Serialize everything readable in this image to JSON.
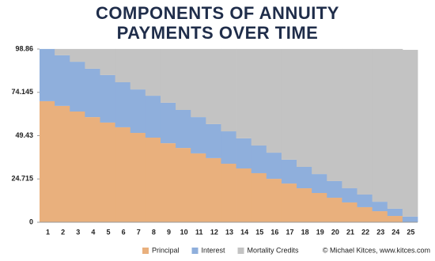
{
  "chart_data": {
    "type": "area",
    "stacked": true,
    "step": true,
    "title": "COMPONENTS OF ANNUITY PAYMENTS OVER TIME",
    "source": "© Michael Kitces, www.kitces.com",
    "categories": [
      "1",
      "2",
      "3",
      "4",
      "5",
      "6",
      "7",
      "8",
      "9",
      "10",
      "11",
      "12",
      "13",
      "14",
      "15",
      "16",
      "17",
      "18",
      "19",
      "20",
      "21",
      "22",
      "23",
      "24",
      "25"
    ],
    "series": [
      {
        "name": "Principal",
        "color": "#e9b07d",
        "values": [
          69.1,
          66.4,
          63.2,
          60.0,
          56.9,
          54.2,
          51.0,
          48.3,
          45.1,
          42.4,
          39.3,
          36.6,
          33.4,
          30.7,
          28.0,
          24.8,
          22.1,
          19.4,
          16.7,
          14.0,
          11.3,
          8.6,
          6.3,
          3.6,
          0
        ]
      },
      {
        "name": "Interest",
        "color": "#8fafdc",
        "values": [
          29.8,
          28.9,
          28.4,
          27.6,
          27.1,
          25.7,
          24.8,
          23.9,
          23.1,
          21.7,
          20.7,
          19.4,
          18.5,
          17.2,
          15.8,
          14.9,
          13.6,
          12.2,
          10.8,
          9.5,
          8.1,
          7.2,
          5.4,
          4.1,
          3.2
        ]
      },
      {
        "name": "Mortality Credits",
        "color": "#c3c3c3",
        "values": [
          0,
          3.6,
          7.3,
          11.3,
          14.9,
          19.0,
          23.1,
          26.7,
          30.7,
          34.8,
          38.9,
          42.9,
          47.0,
          51.0,
          55.1,
          59.2,
          63.2,
          67.3,
          71.4,
          75.4,
          79.5,
          83.1,
          87.2,
          91.2,
          95.2
        ]
      }
    ],
    "ylim": [
      0,
      98.86
    ],
    "yticks": [
      0,
      24.715,
      49.43,
      74.145,
      98.86
    ],
    "legend": "bottom"
  }
}
